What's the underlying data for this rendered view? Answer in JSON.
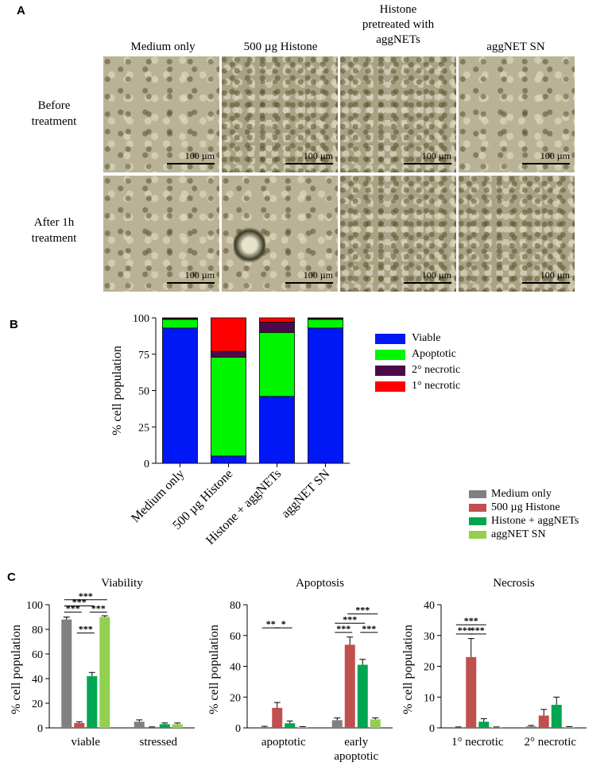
{
  "panelA": {
    "letter": "A",
    "columns": [
      "Medium only",
      "500 µg Histone",
      "Histone\npretreated with\naggNETs",
      "aggNET SN"
    ],
    "rows": [
      "Before\ntreatment",
      "After 1h\ntreatment"
    ],
    "scale_label": "100 µm"
  },
  "panelB": {
    "letter": "B",
    "legend": [
      {
        "label": "Viable",
        "color": "#0018f5"
      },
      {
        "label": "Apoptotic",
        "color": "#00f500"
      },
      {
        "label": "2° necrotic",
        "color": "#4c0a4b"
      },
      {
        "label": "1° necrotic",
        "color": "#ff0000"
      }
    ]
  },
  "panelC": {
    "letter": "C",
    "legend": [
      {
        "label": "Medium only",
        "color": "#808080"
      },
      {
        "label": "500 µg Histone",
        "color": "#c0504d"
      },
      {
        "label": "Histone + aggNETs",
        "color": "#00a651"
      },
      {
        "label": "aggNET SN",
        "color": "#92d050"
      }
    ]
  },
  "chart_data": [
    {
      "type": "bar",
      "stacked": true,
      "categories": [
        "Medium only",
        "500 µg Histone",
        "Histone + aggNETs",
        "aggNET SN"
      ],
      "ylabel": "% cell population",
      "ylim": [
        0,
        100
      ],
      "yticks": [
        0,
        25,
        50,
        75,
        100
      ],
      "series": [
        {
          "name": "Viable",
          "color": "#0018f5",
          "values": [
            93,
            5,
            46,
            93
          ]
        },
        {
          "name": "Apoptotic",
          "color": "#00f500",
          "values": [
            6,
            68,
            44,
            6
          ]
        },
        {
          "name": "2° necrotic",
          "color": "#4c0a4b",
          "values": [
            0.5,
            4,
            7,
            0.5
          ]
        },
        {
          "name": "1° necrotic",
          "color": "#ff0000",
          "values": [
            0.5,
            23,
            3,
            0.5
          ]
        }
      ]
    },
    {
      "type": "bar",
      "title": "Viability",
      "ylabel": "% cell population",
      "ylim": [
        0,
        100
      ],
      "yticks": [
        0,
        20,
        40,
        60,
        80,
        100
      ],
      "categories": [
        "viable",
        "stressed"
      ],
      "series": [
        {
          "name": "Medium only",
          "color": "#808080",
          "values": [
            88,
            5
          ],
          "errors": [
            2,
            1.5
          ]
        },
        {
          "name": "500 µg Histone",
          "color": "#c0504d",
          "values": [
            4,
            0.5
          ],
          "errors": [
            1,
            0.3
          ]
        },
        {
          "name": "Histone + aggNETs",
          "color": "#00a651",
          "values": [
            42,
            3
          ],
          "errors": [
            3,
            1
          ]
        },
        {
          "name": "aggNET SN",
          "color": "#92d050",
          "values": [
            90,
            3
          ],
          "errors": [
            1,
            1
          ]
        }
      ],
      "significance": [
        {
          "cat": 0,
          "from": 0,
          "to": 1,
          "y": 94,
          "label": "***"
        },
        {
          "cat": 0,
          "from": 0,
          "to": 2,
          "y": 99,
          "label": "***"
        },
        {
          "cat": 0,
          "from": 0,
          "to": 3,
          "y": 104,
          "label": "***"
        },
        {
          "cat": 0,
          "from": 1,
          "to": 2,
          "y": 77,
          "label": "***"
        },
        {
          "cat": 0,
          "from": 2,
          "to": 3,
          "y": 94,
          "label": "***"
        }
      ]
    },
    {
      "type": "bar",
      "title": "Apoptosis",
      "ylabel": "% cell population",
      "ylim": [
        0,
        80
      ],
      "yticks": [
        0,
        20,
        40,
        60,
        80
      ],
      "categories": [
        "apoptotic",
        "early\napoptotic"
      ],
      "series": [
        {
          "name": "Medium only",
          "color": "#808080",
          "values": [
            0.5,
            5
          ],
          "errors": [
            0.5,
            1.5
          ]
        },
        {
          "name": "500 µg Histone",
          "color": "#c0504d",
          "values": [
            13,
            54
          ],
          "errors": [
            3.5,
            5
          ]
        },
        {
          "name": "Histone + aggNETs",
          "color": "#00a651",
          "values": [
            3,
            41
          ],
          "errors": [
            1.5,
            3.5
          ]
        },
        {
          "name": "aggNET SN",
          "color": "#92d050",
          "values": [
            0.5,
            5.5
          ],
          "errors": [
            0.3,
            1
          ]
        }
      ],
      "significance": [
        {
          "cat": 0,
          "from": 0,
          "to": 1,
          "y": 65,
          "label": "**"
        },
        {
          "cat": 0,
          "from": 1,
          "to": 2,
          "y": 65,
          "label": "*"
        },
        {
          "cat": 1,
          "from": 0,
          "to": 1,
          "y": 62,
          "label": "***"
        },
        {
          "cat": 1,
          "from": 0,
          "to": 2,
          "y": 68,
          "label": "***"
        },
        {
          "cat": 1,
          "from": 1,
          "to": 3,
          "y": 74,
          "label": "***"
        },
        {
          "cat": 1,
          "from": 2,
          "to": 3,
          "y": 62,
          "label": "***"
        }
      ]
    },
    {
      "type": "bar",
      "title": "Necrosis",
      "ylabel": "% cell population",
      "ylim": [
        0,
        40
      ],
      "yticks": [
        0,
        10,
        20,
        30,
        40
      ],
      "categories": [
        "1° necrotic",
        "2° necrotic"
      ],
      "series": [
        {
          "name": "Medium only",
          "color": "#808080",
          "values": [
            0.2,
            0.5
          ],
          "errors": [
            0.1,
            0.3
          ]
        },
        {
          "name": "500 µg Histone",
          "color": "#c0504d",
          "values": [
            23,
            4
          ],
          "errors": [
            6,
            2
          ]
        },
        {
          "name": "Histone + aggNETs",
          "color": "#00a651",
          "values": [
            2,
            7.5
          ],
          "errors": [
            1,
            2.5
          ]
        },
        {
          "name": "aggNET SN",
          "color": "#92d050",
          "values": [
            0.2,
            0.3
          ],
          "errors": [
            0.1,
            0.1
          ]
        }
      ],
      "significance": [
        {
          "cat": 0,
          "from": 0,
          "to": 1,
          "y": 30.5,
          "label": "***"
        },
        {
          "cat": 0,
          "from": 0,
          "to": 2,
          "y": 33.5,
          "label": "***"
        },
        {
          "cat": 0,
          "from": 1,
          "to": 2,
          "y": 30.5,
          "label": "***"
        }
      ]
    }
  ]
}
